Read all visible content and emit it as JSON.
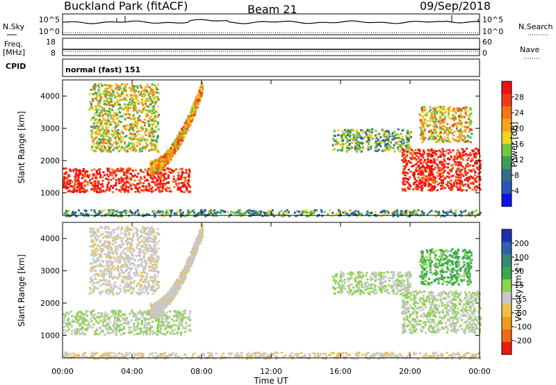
{
  "header": {
    "station": "Buckland Park (fitACF)",
    "beam": "Beam 21",
    "date": "09/Sep/2018"
  },
  "strips": {
    "nsky_label": "N.Sky",
    "nsearch_label": "N.Search",
    "noise_top": "10^5",
    "noise_bottom": "10^0",
    "freq_label_1": "Freq.",
    "freq_label_2": "[MHz]",
    "freq_top": "18",
    "freq_bottom": "8",
    "nave_label": "Nave",
    "nave_top": "60",
    "nave_bottom": "0",
    "cpid_label": "CPID",
    "cpid_value": "normal (fast) 151"
  },
  "colors": {
    "power": [
      "#1010f0",
      "#2855b8",
      "#336e86",
      "#3f9e55",
      "#73c540",
      "#f2d41e",
      "#f6a31a",
      "#f57418",
      "#f03a14",
      "#ee1111"
    ],
    "velocity": [
      "#1f2fb0",
      "#2e63a8",
      "#39886f",
      "#3aa84e",
      "#8cd24f",
      "#c8c8c8",
      "#f0c040",
      "#f09a1e",
      "#ef6a14",
      "#ee1b10"
    ]
  },
  "chart_data": [
    {
      "type": "heatmap",
      "title": "Power",
      "ylabel": "Slant Range [km]",
      "xlabel": "",
      "ylim": [
        300,
        4500
      ],
      "xlim": [
        "00:00",
        "24:00"
      ],
      "x_ticks": [
        "00:00",
        "04:00",
        "08:00",
        "12:00",
        "16:00",
        "20:00",
        "00:00"
      ],
      "y_ticks": [
        1000,
        2000,
        3000,
        4000
      ],
      "colorbar": {
        "label": "Power [dB]",
        "ticks": [
          "4",
          "8",
          "12",
          "16",
          "20",
          "24",
          "28"
        ],
        "range": [
          0,
          30
        ]
      },
      "features": [
        {
          "name": "main echo band",
          "t_start": 0.0,
          "t_end": 7.3,
          "r_low": 1050,
          "r_high": 1800,
          "dominant_value": 28
        },
        {
          "name": "rising band",
          "t_start": 5.0,
          "t_end": 8.0,
          "r_low": 1800,
          "r_high": 4300,
          "dominant_value": 20
        },
        {
          "name": "upper arc",
          "t_start": 1.5,
          "t_end": 5.5,
          "r_low": 2300,
          "r_high": 4400,
          "dominant_value": 16
        },
        {
          "name": "afternoon arc",
          "t_start": 15.5,
          "t_end": 20.0,
          "r_low": 2300,
          "r_high": 3000,
          "dominant_value": 12
        },
        {
          "name": "evening band",
          "t_start": 19.5,
          "t_end": 24.0,
          "r_low": 1100,
          "r_high": 2400,
          "dominant_value": 28
        },
        {
          "name": "evening upper band",
          "t_start": 20.5,
          "t_end": 23.5,
          "r_low": 2600,
          "r_high": 3700,
          "dominant_value": 18
        },
        {
          "name": "near-range clutter",
          "t_start": 0.0,
          "t_end": 24.0,
          "r_low": 300,
          "r_high": 500,
          "dominant_value": 10
        }
      ]
    },
    {
      "type": "heatmap",
      "title": "Velocity",
      "ylabel": "Slant Range [km]",
      "xlabel": "Time UT",
      "ylim": [
        300,
        4500
      ],
      "xlim": [
        "00:00",
        "24:00"
      ],
      "x_ticks": [
        "00:00",
        "04:00",
        "08:00",
        "12:00",
        "16:00",
        "20:00",
        "00:00"
      ],
      "y_ticks": [
        1000,
        2000,
        3000,
        4000
      ],
      "colorbar": {
        "label": "Velocity [m s^-1]",
        "ticks": [
          "200",
          "100",
          "50",
          "15",
          "-15",
          "-50",
          "-100",
          "-200"
        ],
        "range": [
          -250,
          250
        ]
      },
      "features": [
        {
          "name": "main echo band",
          "t_start": 0.0,
          "t_end": 7.3,
          "r_low": 1050,
          "r_high": 1800,
          "dominant_value": 0
        },
        {
          "name": "rising band",
          "t_start": 5.0,
          "t_end": 8.0,
          "r_low": 1800,
          "r_high": 4300,
          "dominant_value": -30
        },
        {
          "name": "upper arc",
          "t_start": 1.5,
          "t_end": 5.5,
          "r_low": 2300,
          "r_high": 4400,
          "dominant_value": -30
        },
        {
          "name": "afternoon arc",
          "t_start": 15.5,
          "t_end": 20.0,
          "r_low": 2300,
          "r_high": 3000,
          "dominant_value": 0
        },
        {
          "name": "evening band",
          "t_start": 19.5,
          "t_end": 24.0,
          "r_low": 1100,
          "r_high": 2400,
          "dominant_value": 0
        },
        {
          "name": "evening upper band",
          "t_start": 20.5,
          "t_end": 23.5,
          "r_low": 2600,
          "r_high": 3700,
          "dominant_value": 60
        },
        {
          "name": "near-range clutter",
          "t_start": 0.0,
          "t_end": 24.0,
          "r_low": 300,
          "r_high": 500,
          "dominant_value": -40
        }
      ]
    }
  ]
}
